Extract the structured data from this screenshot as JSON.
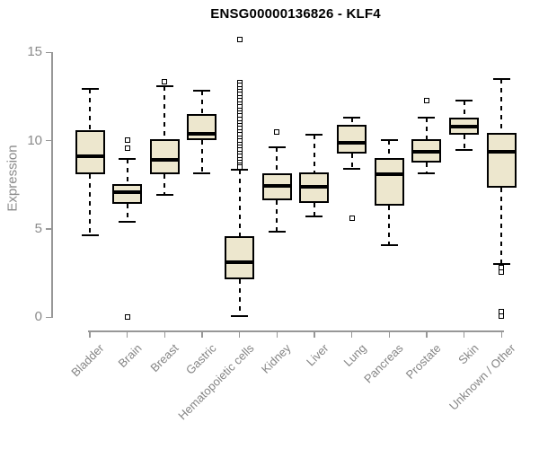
{
  "header": {
    "title": "ENSG00000136826 - KLF4"
  },
  "chart_data": {
    "type": "boxplot",
    "title": "ENSG00000136826 - KLF4",
    "xlabel": "",
    "ylabel": "Expression",
    "ylim": [
      0,
      15
    ],
    "yticks": [
      0,
      5,
      10,
      15
    ],
    "grid": false,
    "legend": "none",
    "colors": {
      "box_fill": "#EDE7CE",
      "box_border": "#000000",
      "median": "#000000",
      "whisker": "#000000",
      "axis": "#979797",
      "tick_label": "#8a8a8a",
      "title": "#000000",
      "background": "#ffffff"
    },
    "categories": [
      "Bladder",
      "Brain",
      "Breast",
      "Gastric",
      "Hematopoietic cells",
      "Kidney",
      "Liver",
      "Lung",
      "Pancreas",
      "Prostate",
      "Skin",
      "Unknown / Other"
    ],
    "boxes": [
      {
        "category": "Bladder",
        "low": 4.65,
        "q1": 8.1,
        "median": 9.1,
        "q3": 10.6,
        "high": 12.95,
        "outliers": []
      },
      {
        "category": "Brain",
        "low": 5.4,
        "q1": 6.4,
        "median": 7.1,
        "q3": 7.55,
        "high": 8.95,
        "outliers": [
          10.05,
          9.55,
          0.0
        ]
      },
      {
        "category": "Breast",
        "low": 6.95,
        "q1": 8.1,
        "median": 8.9,
        "q3": 10.1,
        "high": 13.1,
        "outliers": [
          13.35
        ]
      },
      {
        "category": "Gastric",
        "low": 8.15,
        "q1": 10.05,
        "median": 10.4,
        "q3": 11.5,
        "high": 12.85,
        "outliers": []
      },
      {
        "category": "Hematopoietic cells",
        "low": 0.05,
        "q1": 2.15,
        "median": 3.1,
        "q3": 4.6,
        "high": 8.35,
        "outliers": [
          15.75,
          13.3,
          13.12,
          12.95,
          12.78,
          12.6,
          12.42,
          12.25,
          12.08,
          11.9,
          11.72,
          11.55,
          11.38,
          11.2,
          11.02,
          10.85,
          10.68,
          10.5,
          10.32,
          10.15,
          9.98,
          9.8,
          9.62,
          9.45,
          9.28,
          9.1,
          8.92,
          8.75,
          8.6,
          8.5
        ]
      },
      {
        "category": "Kidney",
        "low": 4.85,
        "q1": 6.65,
        "median": 7.45,
        "q3": 8.15,
        "high": 9.65,
        "outliers": [
          10.5
        ]
      },
      {
        "category": "Liver",
        "low": 5.7,
        "q1": 6.45,
        "median": 7.4,
        "q3": 8.2,
        "high": 10.35,
        "outliers": []
      },
      {
        "category": "Lung",
        "low": 8.4,
        "q1": 9.25,
        "median": 9.9,
        "q3": 10.9,
        "high": 11.3,
        "outliers": [
          5.6
        ]
      },
      {
        "category": "Pancreas",
        "low": 4.1,
        "q1": 6.3,
        "median": 8.1,
        "q3": 9.0,
        "high": 10.05,
        "outliers": []
      },
      {
        "category": "Prostate",
        "low": 8.15,
        "q1": 8.75,
        "median": 9.35,
        "q3": 10.1,
        "high": 11.3,
        "outliers": [
          12.25
        ]
      },
      {
        "category": "Skin",
        "low": 9.45,
        "q1": 10.35,
        "median": 10.8,
        "q3": 11.3,
        "high": 12.25,
        "outliers": []
      },
      {
        "category": "Unknown / Other",
        "low": 3.0,
        "q1": 7.35,
        "median": 9.35,
        "q3": 10.45,
        "high": 13.5,
        "outliers": [
          2.8,
          2.55,
          0.3,
          0.05
        ]
      }
    ]
  }
}
